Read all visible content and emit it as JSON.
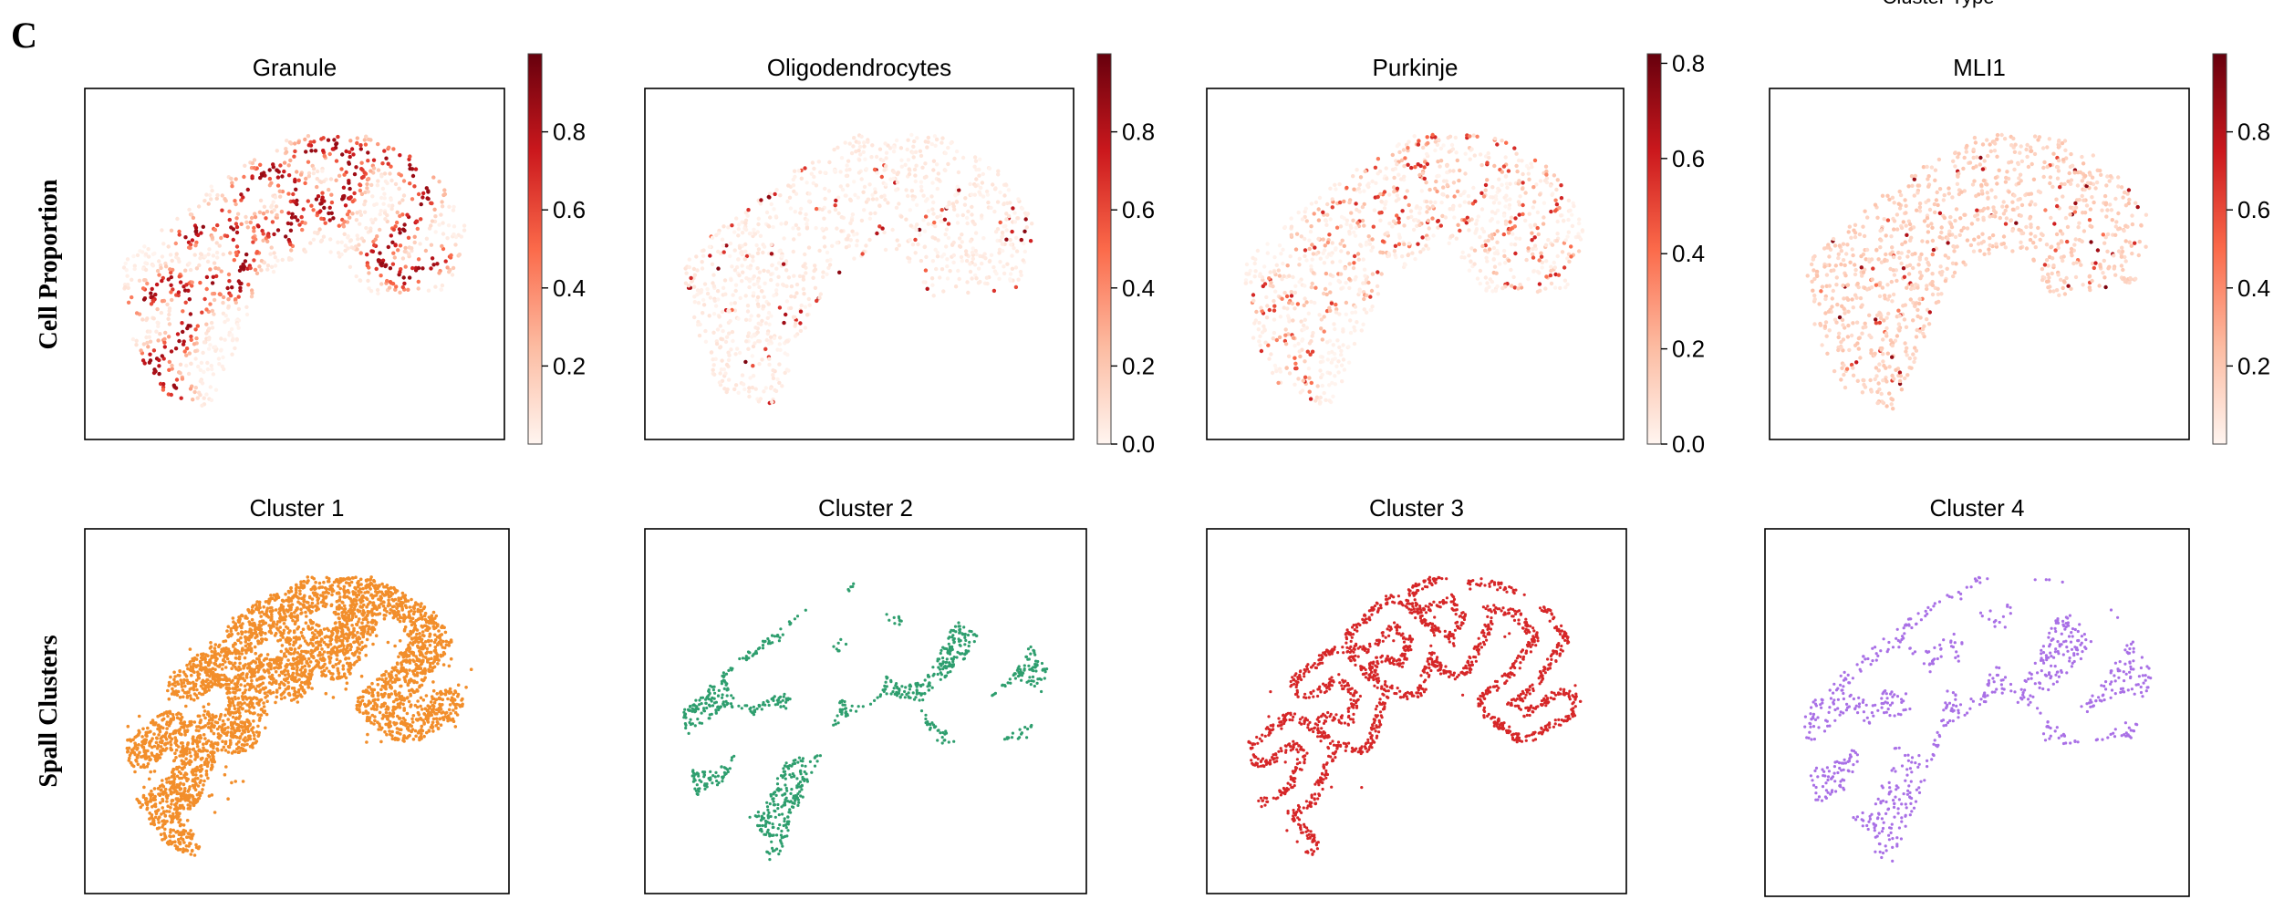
{
  "figure": {
    "panel_letter": "C",
    "top_caption": "Cluster Type",
    "row_labels": [
      "Cell Proportion",
      "Spall Clusters"
    ]
  },
  "colors": {
    "reds_low": "#fff5f0",
    "reds_mid": "#fb6a4a",
    "reds_high": "#67000d",
    "cluster_1": "#f28e2b",
    "cluster_2": "#2e9e6e",
    "cluster_3": "#d62728",
    "cluster_4": "#a970e6"
  },
  "chart_data": [
    {
      "type": "scatter",
      "title": "Granule",
      "row": "Cell Proportion",
      "colorbar": {
        "colormap": "Reds",
        "range": [
          0,
          1
        ],
        "ticks": [
          "0.2",
          "0.4",
          "0.6",
          "0.8"
        ]
      },
      "spatial_pattern": "tissue-shaped spatial spots colored by cell proportion; highest values along folded granule layer bands"
    },
    {
      "type": "scatter",
      "title": "Oligodendrocytes",
      "row": "Cell Proportion",
      "colorbar": {
        "colormap": "Reds",
        "range": [
          0,
          1
        ],
        "ticks": [
          "0.0",
          "0.2",
          "0.4",
          "0.6",
          "0.8"
        ]
      },
      "spatial_pattern": "scattered high-proportion spots concentrated in central white-matter region"
    },
    {
      "type": "scatter",
      "title": "Purkinje",
      "row": "Cell Proportion",
      "colorbar": {
        "colormap": "Reds",
        "range": [
          0,
          0.82
        ],
        "ticks": [
          "0.0",
          "0.2",
          "0.4",
          "0.6",
          "0.8"
        ]
      },
      "spatial_pattern": "thin lines of elevated proportion along layer boundaries"
    },
    {
      "type": "scatter",
      "title": "MLI1",
      "row": "Cell Proportion",
      "colorbar": {
        "colormap": "Reds",
        "range": [
          0,
          1
        ],
        "ticks": [
          "0.2",
          "0.4",
          "0.6",
          "0.8"
        ]
      },
      "spatial_pattern": "diffuse low proportion with sparse darker spots"
    },
    {
      "type": "scatter",
      "title": "Cluster 1",
      "row": "Spall Clusters",
      "color": "#f28e2b",
      "point_density": "dense",
      "pattern": "folded bands"
    },
    {
      "type": "scatter",
      "title": "Cluster 2",
      "row": "Spall Clusters",
      "color": "#2e9e6e",
      "point_density": "sparse",
      "pattern": "central branching"
    },
    {
      "type": "scatter",
      "title": "Cluster 3",
      "row": "Spall Clusters",
      "color": "#d62728",
      "point_density": "medium",
      "pattern": "thin folded lines"
    },
    {
      "type": "scatter",
      "title": "Cluster 4",
      "row": "Spall Clusters",
      "color": "#a970e6",
      "point_density": "sparse",
      "pattern": "diffuse outer regions"
    }
  ]
}
